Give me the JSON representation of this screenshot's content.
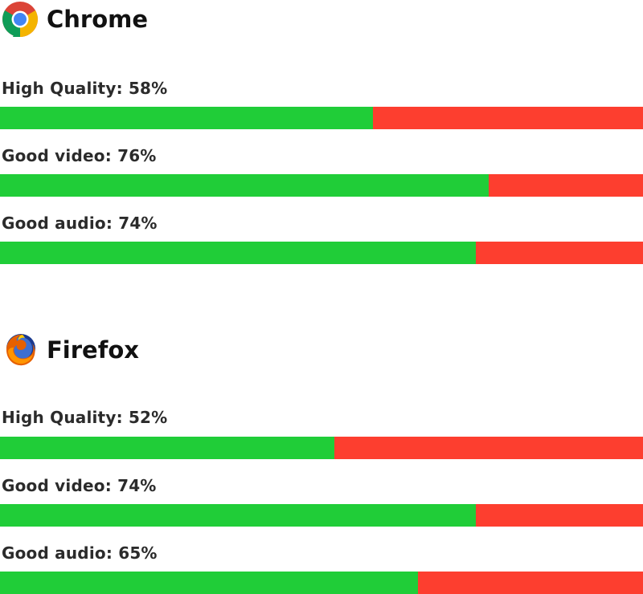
{
  "colors": {
    "good": "#20cd38",
    "bad": "#fd3e2f"
  },
  "chart_data": [
    {
      "type": "bar",
      "orientation": "horizontal-stacked",
      "title": "Chrome",
      "icon": "chrome-logo-icon",
      "categories": [
        "High Quality",
        "Good video",
        "Good audio"
      ],
      "values": [
        58,
        76,
        74
      ],
      "unit": "%",
      "ylim": [
        0,
        100
      ],
      "grid": false,
      "legend": "none"
    },
    {
      "type": "bar",
      "orientation": "horizontal-stacked",
      "title": "Firefox",
      "icon": "firefox-logo-icon",
      "categories": [
        "High Quality",
        "Good video",
        "Good audio"
      ],
      "values": [
        52,
        74,
        65
      ],
      "unit": "%",
      "ylim": [
        0,
        100
      ],
      "grid": false,
      "legend": "none"
    }
  ]
}
